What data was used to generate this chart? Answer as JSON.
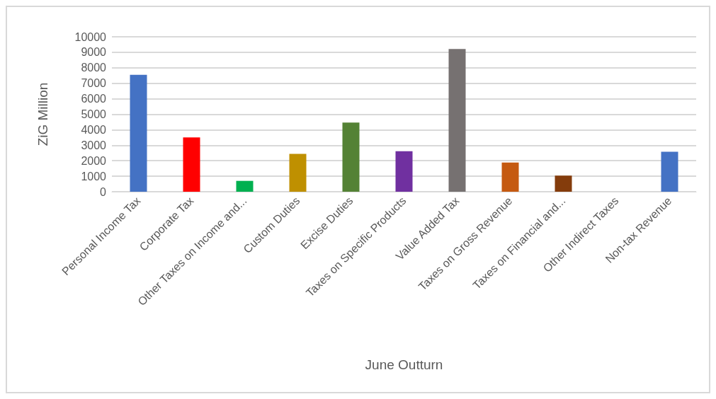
{
  "chart_data": {
    "type": "bar",
    "xlabel": "June Outturn",
    "ylabel": "ZiG Million",
    "categories": [
      "Personal Income Tax",
      "Corporate Tax",
      "Other Taxes on Income and...",
      "Custom Duties",
      "Excise Duties",
      "Taxes on Specific Products",
      "Value Added Tax",
      "Taxes on Gross Revenue",
      "Taxes on Financial and...",
      "Other Indirect Taxes",
      "Non-tax Revenue"
    ],
    "values": [
      7550,
      3500,
      700,
      2440,
      4460,
      2610,
      9210,
      1880,
      1040,
      null,
      2580
    ],
    "colors": [
      "#4472c4",
      "#ff0000",
      "#00b050",
      "#bf9000",
      "#548235",
      "#7030a0",
      "#767171",
      "#c55a11",
      "#843c0c",
      "#a5a5a5",
      "#4472c4"
    ],
    "ylim": [
      0,
      10000
    ],
    "yticks": [
      0,
      1000,
      2000,
      3000,
      4000,
      5000,
      6000,
      7000,
      8000,
      9000,
      10000
    ],
    "grid": "y"
  }
}
